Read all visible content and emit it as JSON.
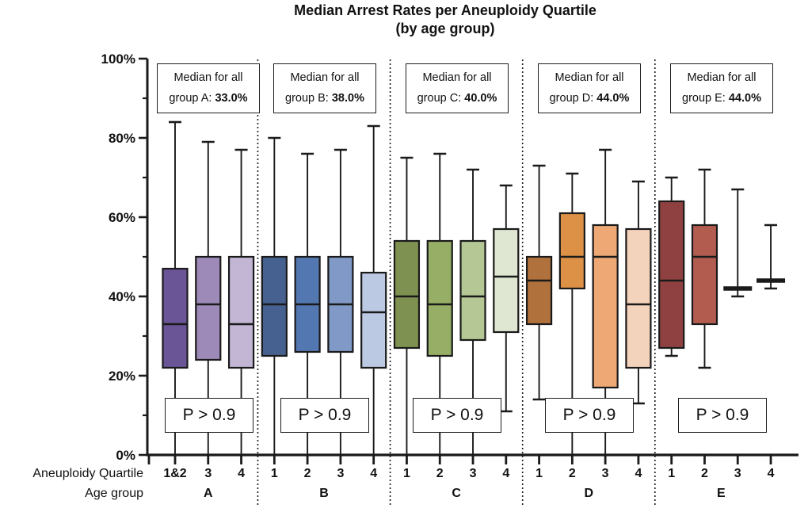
{
  "title": {
    "line1": "Median Arrest Rates per Aneuploidy Quartile",
    "line2": "(by age group)"
  },
  "y_axis": {
    "major_ticks": [
      {
        "value": 0,
        "label": "0%"
      },
      {
        "value": 20,
        "label": "20%"
      },
      {
        "value": 40,
        "label": "40%"
      },
      {
        "value": 60,
        "label": "60%"
      },
      {
        "value": 80,
        "label": "80%"
      },
      {
        "value": 100,
        "label": "100%"
      }
    ],
    "minor_ticks": [
      10,
      30,
      50,
      70,
      90
    ],
    "min": 0,
    "max": 100
  },
  "x_axis": {
    "row1_label": "Aneuploidy Quartile",
    "row2_label": "Age group"
  },
  "chart_data": {
    "type": "boxplot",
    "title": "Median Arrest Rates per Aneuploidy Quartile (by age group)",
    "ylim": [
      0,
      100
    ],
    "grid": false,
    "groups": [
      {
        "age_group": "A",
        "median_note": {
          "line1": "Median for all",
          "line2_prefix": "group A: ",
          "value": "33.0%"
        },
        "p_label": "P > 0.9",
        "boxes": [
          {
            "quartile": "1&2",
            "color": "#6a5596",
            "min": 0,
            "q1": 22,
            "median": 33,
            "q3": 47,
            "max": 84,
            "min_cap": false
          },
          {
            "quartile": "3",
            "color": "#9d8ab8",
            "min": 0,
            "q1": 24,
            "median": 38,
            "q3": 50,
            "max": 79,
            "min_cap": false
          },
          {
            "quartile": "4",
            "color": "#c2b6d4",
            "min": 0,
            "q1": 22,
            "median": 33,
            "q3": 50,
            "max": 77,
            "min_cap": false
          }
        ]
      },
      {
        "age_group": "B",
        "median_note": {
          "line1": "Median for all",
          "line2_prefix": "group B: ",
          "value": "38.0%"
        },
        "p_label": "P > 0.9",
        "boxes": [
          {
            "quartile": "1",
            "color": "#46618f",
            "min": 0,
            "q1": 25,
            "median": 38,
            "q3": 50,
            "max": 80,
            "min_cap": false
          },
          {
            "quartile": "2",
            "color": "#5377b0",
            "min": 0,
            "q1": 26,
            "median": 38,
            "q3": 50,
            "max": 76,
            "min_cap": false
          },
          {
            "quartile": "3",
            "color": "#8099c6",
            "min": 0,
            "q1": 26,
            "median": 38,
            "q3": 50,
            "max": 77,
            "min_cap": false
          },
          {
            "quartile": "4",
            "color": "#bcc9e2",
            "min": 0,
            "q1": 22,
            "median": 36,
            "q3": 46,
            "max": 83,
            "min_cap": false
          }
        ]
      },
      {
        "age_group": "C",
        "median_note": {
          "line1": "Median for all",
          "line2_prefix": "group C: ",
          "value": "40.0%"
        },
        "p_label": "P > 0.9",
        "boxes": [
          {
            "quartile": "1",
            "color": "#7e9150",
            "min": 0,
            "q1": 27,
            "median": 40,
            "q3": 54,
            "max": 75,
            "min_cap": false
          },
          {
            "quartile": "2",
            "color": "#96ae66",
            "min": 0,
            "q1": 25,
            "median": 38,
            "q3": 54,
            "max": 76,
            "min_cap": false
          },
          {
            "quartile": "3",
            "color": "#b5c794",
            "min": 0,
            "q1": 29,
            "median": 40,
            "q3": 54,
            "max": 72,
            "min_cap": false
          },
          {
            "quartile": "4",
            "color": "#dfe7d2",
            "min": 11,
            "q1": 31,
            "median": 45,
            "q3": 57,
            "max": 68,
            "min_cap": true
          }
        ]
      },
      {
        "age_group": "D",
        "median_note": {
          "line1": "Median for all",
          "line2_prefix": "group D: ",
          "value": "44.0%"
        },
        "p_label": "P > 0.9",
        "boxes": [
          {
            "quartile": "1",
            "color": "#b0713c",
            "min": 14,
            "q1": 33,
            "median": 44,
            "q3": 50,
            "max": 73,
            "min_cap": true
          },
          {
            "quartile": "2",
            "color": "#dd9147",
            "min": 0,
            "q1": 42,
            "median": 50,
            "q3": 61,
            "max": 71,
            "min_cap": false
          },
          {
            "quartile": "3",
            "color": "#eda876",
            "min": 0,
            "q1": 17,
            "median": 50,
            "q3": 58,
            "max": 77,
            "min_cap": false
          },
          {
            "quartile": "4",
            "color": "#f4d3bd",
            "min": 13,
            "q1": 22,
            "median": 38,
            "q3": 57,
            "max": 69,
            "min_cap": true
          }
        ]
      },
      {
        "age_group": "E",
        "median_note": {
          "line1": "Median for all",
          "line2_prefix": "group E: ",
          "value": "44.0%"
        },
        "p_label": "P > 0.9",
        "boxes": [
          {
            "quartile": "1",
            "color": "#8e4140",
            "min": 25,
            "q1": 27,
            "median": 44,
            "q3": 64,
            "max": 70,
            "min_cap": true
          },
          {
            "quartile": "2",
            "color": "#b25c50",
            "min": 22,
            "q1": 33,
            "median": 50,
            "q3": 58,
            "max": 72,
            "min_cap": true
          },
          {
            "quartile": "3",
            "color": "none",
            "min": 40,
            "q1": 42,
            "median": 42,
            "q3": 42,
            "max": 67,
            "min_cap": true,
            "collapsed": true
          },
          {
            "quartile": "4",
            "color": "none",
            "min": 42,
            "q1": 44,
            "median": 44,
            "q3": 44,
            "max": 58,
            "min_cap": true,
            "collapsed": true
          }
        ]
      }
    ]
  }
}
